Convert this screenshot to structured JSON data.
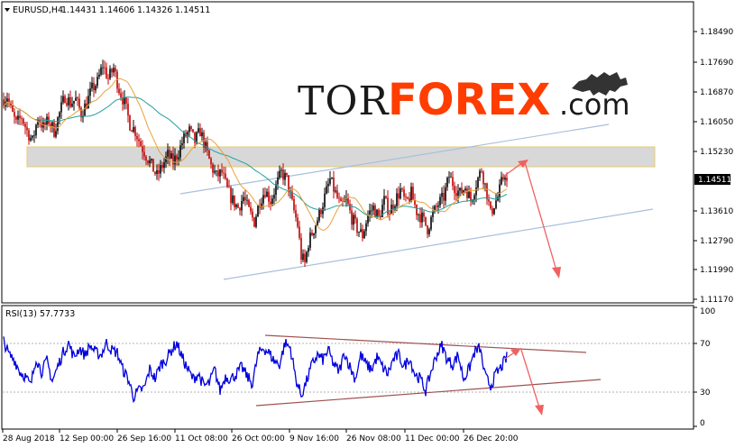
{
  "header": {
    "symbol": "EURUSD,H4",
    "open": "1.14431",
    "high": "1.14606",
    "low": "1.14326",
    "close": "1.14511"
  },
  "logo": {
    "part1": "TOR",
    "part2": "FOREX",
    "part3": ".com"
  },
  "price_panel": {
    "current_price_label": "1.14511",
    "y_ticks": [
      "1.18490",
      "1.17690",
      "1.16870",
      "1.16050",
      "1.15230",
      "1.14510",
      "1.13610",
      "1.12790",
      "1.11990",
      "1.11170"
    ]
  },
  "rsi_panel": {
    "label": "RSI(13) 57.7733",
    "y_ticks": [
      "100",
      "70",
      "30",
      "0"
    ]
  },
  "x_ticks": [
    "28 Aug 2018",
    "12 Sep 00:00",
    "26 Sep 16:00",
    "11 Oct 08:00",
    "26 Oct 00:00",
    "9 Nov 16:00",
    "26 Nov 08:00",
    "11 Dec 00:00",
    "26 Dec 20:00"
  ],
  "colors": {
    "bull": "#000000",
    "bear": "#c00000",
    "ma_fast": "#e8a23a",
    "ma_slow": "#20a0a0",
    "rsi": "#0000dd",
    "channel": "#a8c0dc",
    "rsi_channel": "#a05050",
    "forecast": "#f06060",
    "zone_fill": "#d8d8d8",
    "zone_border": "#e8c870"
  },
  "chart_data": [
    {
      "type": "candlestick",
      "title": "EURUSD,H4",
      "ylim": [
        1.1117,
        1.1885
      ],
      "x": [
        "28 Aug 2018",
        "12 Sep 00:00",
        "26 Sep 16:00",
        "11 Oct 08:00",
        "26 Oct 00:00",
        "9 Nov 16:00",
        "26 Nov 08:00",
        "11 Dec 00:00",
        "26 Dec 20:00"
      ],
      "close_path": [
        [
          0,
          1.169
        ],
        [
          4,
          1.17
        ],
        [
          8,
          1.166
        ],
        [
          14,
          1.162
        ],
        [
          20,
          1.164
        ],
        [
          26,
          1.16
        ],
        [
          32,
          1.157
        ],
        [
          38,
          1.164
        ],
        [
          44,
          1.161
        ],
        [
          50,
          1.163
        ],
        [
          56,
          1.16
        ],
        [
          62,
          1.165
        ],
        [
          68,
          1.17
        ],
        [
          74,
          1.168
        ],
        [
          80,
          1.169
        ],
        [
          86,
          1.165
        ],
        [
          92,
          1.168
        ],
        [
          98,
          1.172
        ],
        [
          104,
          1.174
        ],
        [
          110,
          1.179
        ],
        [
          116,
          1.175
        ],
        [
          122,
          1.178
        ],
        [
          128,
          1.172
        ],
        [
          134,
          1.168
        ],
        [
          140,
          1.162
        ],
        [
          146,
          1.16
        ],
        [
          152,
          1.156
        ],
        [
          158,
          1.153
        ],
        [
          164,
          1.15
        ],
        [
          170,
          1.147
        ],
        [
          176,
          1.15
        ],
        [
          182,
          1.153
        ],
        [
          188,
          1.151
        ],
        [
          194,
          1.154
        ],
        [
          200,
          1.158
        ],
        [
          206,
          1.16
        ],
        [
          212,
          1.157
        ],
        [
          218,
          1.16
        ],
        [
          224,
          1.155
        ],
        [
          230,
          1.15
        ],
        [
          236,
          1.147
        ],
        [
          242,
          1.148
        ],
        [
          248,
          1.143
        ],
        [
          254,
          1.14
        ],
        [
          260,
          1.138
        ],
        [
          266,
          1.141
        ],
        [
          272,
          1.137
        ],
        [
          278,
          1.134
        ],
        [
          284,
          1.14
        ],
        [
          290,
          1.143
        ],
        [
          296,
          1.14
        ],
        [
          302,
          1.144
        ],
        [
          308,
          1.148
        ],
        [
          314,
          1.146
        ],
        [
          320,
          1.139
        ],
        [
          326,
          1.133
        ],
        [
          330,
          1.124
        ],
        [
          334,
          1.122
        ],
        [
          338,
          1.128
        ],
        [
          344,
          1.132
        ],
        [
          350,
          1.136
        ],
        [
          356,
          1.141
        ],
        [
          362,
          1.146
        ],
        [
          368,
          1.142
        ],
        [
          374,
          1.138
        ],
        [
          380,
          1.14
        ],
        [
          386,
          1.135
        ],
        [
          392,
          1.132
        ],
        [
          398,
          1.13
        ],
        [
          404,
          1.136
        ],
        [
          410,
          1.138
        ],
        [
          416,
          1.135
        ],
        [
          422,
          1.14
        ],
        [
          428,
          1.137
        ],
        [
          434,
          1.14
        ],
        [
          440,
          1.143
        ],
        [
          446,
          1.139
        ],
        [
          452,
          1.142
        ],
        [
          458,
          1.137
        ],
        [
          464,
          1.135
        ],
        [
          470,
          1.132
        ],
        [
          476,
          1.136
        ],
        [
          482,
          1.139
        ],
        [
          488,
          1.141
        ],
        [
          494,
          1.147
        ],
        [
          500,
          1.144
        ],
        [
          506,
          1.142
        ],
        [
          512,
          1.144
        ],
        [
          518,
          1.14
        ],
        [
          524,
          1.145
        ],
        [
          530,
          1.149
        ],
        [
          536,
          1.142
        ],
        [
          540,
          1.136
        ],
        [
          544,
          1.139
        ],
        [
          548,
          1.141
        ],
        [
          552,
          1.145
        ],
        [
          556,
          1.148
        ],
        [
          558,
          1.1451
        ]
      ]
    },
    {
      "type": "line",
      "title": "RSI(13) 57.7733",
      "ylim": [
        0,
        100
      ],
      "x_index": [
        0,
        6,
        12,
        18,
        24,
        30,
        36,
        42,
        48,
        54,
        60,
        66,
        72,
        78,
        84,
        90,
        96,
        102,
        108,
        114,
        120,
        126,
        132,
        138,
        144,
        150,
        156,
        162,
        168,
        174,
        180,
        186,
        192,
        198,
        204,
        210,
        216,
        222,
        228,
        234,
        240,
        246,
        252,
        258,
        264,
        270,
        276,
        282,
        288,
        294,
        300,
        306,
        312,
        318,
        324,
        330,
        336,
        342,
        348,
        354,
        360,
        366,
        372,
        378,
        384,
        390,
        396,
        402,
        408,
        414,
        420,
        426,
        432,
        438,
        444,
        450,
        456,
        462,
        468,
        474,
        480,
        486,
        492,
        498,
        504,
        510,
        516,
        522,
        528,
        534,
        540,
        546,
        552,
        558
      ],
      "values": [
        72,
        60,
        56,
        46,
        42,
        34,
        58,
        46,
        55,
        38,
        50,
        62,
        70,
        58,
        66,
        60,
        68,
        62,
        60,
        70,
        64,
        62,
        48,
        40,
        25,
        30,
        32,
        48,
        40,
        52,
        56,
        64,
        70,
        58,
        48,
        40,
        44,
        34,
        36,
        48,
        30,
        42,
        40,
        44,
        50,
        42,
        36,
        60,
        66,
        62,
        55,
        52,
        70,
        66,
        40,
        26,
        38,
        52,
        60,
        56,
        64,
        52,
        46,
        62,
        50,
        40,
        60,
        52,
        48,
        58,
        50,
        44,
        56,
        60,
        50,
        58,
        44,
        40,
        30,
        46,
        60,
        68,
        56,
        52,
        60,
        40,
        48,
        62,
        66,
        42,
        34,
        44,
        50,
        58
      ],
      "y_ticks": [
        100,
        70,
        30,
        0
      ]
    }
  ]
}
